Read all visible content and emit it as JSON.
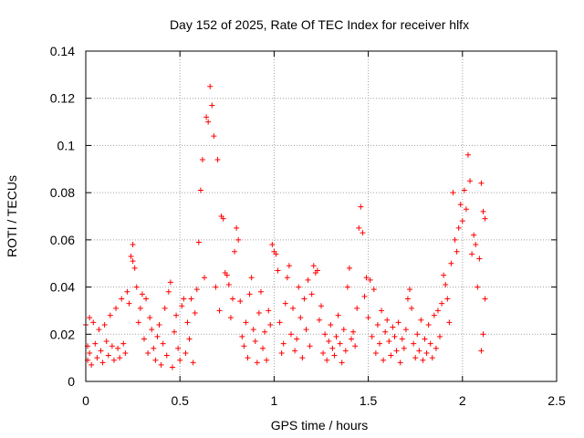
{
  "chart_data": {
    "type": "scatter",
    "title": "Day 152 of 2025, Rate Of TEC Index for receiver hlfx",
    "xlabel": "GPS time / hours",
    "ylabel": "ROTI / TECUs",
    "xlim": [
      0,
      2.5
    ],
    "ylim": [
      0,
      0.14
    ],
    "xticks": [
      0,
      0.5,
      1,
      1.5,
      2,
      2.5
    ],
    "xtick_labels": [
      "0",
      "0.5",
      "1",
      "1.5",
      "2",
      "2.5"
    ],
    "yticks": [
      0,
      0.02,
      0.04,
      0.06,
      0.08,
      0.1,
      0.12,
      0.14
    ],
    "ytick_labels": [
      "0",
      "0.02",
      "0.04",
      "0.06",
      "0.08",
      "0.1",
      "0.12",
      "0.14"
    ],
    "grid": true,
    "marker": "+",
    "color": "#ff0000",
    "series": [
      {
        "name": "ROTI",
        "points": [
          [
            0.0,
            0.024
          ],
          [
            0.01,
            0.015
          ],
          [
            0.01,
            0.009
          ],
          [
            0.02,
            0.027
          ],
          [
            0.02,
            0.012
          ],
          [
            0.03,
            0.007
          ],
          [
            0.04,
            0.025
          ],
          [
            0.05,
            0.016
          ],
          [
            0.06,
            0.01
          ],
          [
            0.07,
            0.022
          ],
          [
            0.08,
            0.013
          ],
          [
            0.09,
            0.008
          ],
          [
            0.1,
            0.024
          ],
          [
            0.11,
            0.017
          ],
          [
            0.12,
            0.011
          ],
          [
            0.13,
            0.028
          ],
          [
            0.14,
            0.015
          ],
          [
            0.15,
            0.009
          ],
          [
            0.16,
            0.031
          ],
          [
            0.17,
            0.014
          ],
          [
            0.18,
            0.01
          ],
          [
            0.19,
            0.035
          ],
          [
            0.2,
            0.016
          ],
          [
            0.21,
            0.012
          ],
          [
            0.22,
            0.038
          ],
          [
            0.23,
            0.033
          ],
          [
            0.24,
            0.053
          ],
          [
            0.25,
            0.058
          ],
          [
            0.25,
            0.051
          ],
          [
            0.26,
            0.048
          ],
          [
            0.27,
            0.04
          ],
          [
            0.28,
            0.025
          ],
          [
            0.29,
            0.031
          ],
          [
            0.3,
            0.037
          ],
          [
            0.31,
            0.018
          ],
          [
            0.32,
            0.035
          ],
          [
            0.33,
            0.012
          ],
          [
            0.34,
            0.027
          ],
          [
            0.35,
            0.022
          ],
          [
            0.36,
            0.014
          ],
          [
            0.37,
            0.009
          ],
          [
            0.38,
            0.019
          ],
          [
            0.39,
            0.024
          ],
          [
            0.4,
            0.007
          ],
          [
            0.41,
            0.016
          ],
          [
            0.42,
            0.031
          ],
          [
            0.43,
            0.011
          ],
          [
            0.44,
            0.038
          ],
          [
            0.45,
            0.042
          ],
          [
            0.46,
            0.006
          ],
          [
            0.47,
            0.021
          ],
          [
            0.48,
            0.028
          ],
          [
            0.49,
            0.014
          ],
          [
            0.5,
            0.009
          ],
          [
            0.51,
            0.032
          ],
          [
            0.52,
            0.035
          ],
          [
            0.53,
            0.012
          ],
          [
            0.54,
            0.025
          ],
          [
            0.55,
            0.018
          ],
          [
            0.56,
            0.035
          ],
          [
            0.57,
            0.008
          ],
          [
            0.58,
            0.029
          ],
          [
            0.59,
            0.039
          ],
          [
            0.6,
            0.059
          ],
          [
            0.61,
            0.081
          ],
          [
            0.62,
            0.094
          ],
          [
            0.63,
            0.044
          ],
          [
            0.64,
            0.112
          ],
          [
            0.65,
            0.11
          ],
          [
            0.66,
            0.125
          ],
          [
            0.67,
            0.117
          ],
          [
            0.68,
            0.104
          ],
          [
            0.69,
            0.04
          ],
          [
            0.7,
            0.094
          ],
          [
            0.71,
            0.03
          ],
          [
            0.72,
            0.07
          ],
          [
            0.73,
            0.069
          ],
          [
            0.74,
            0.046
          ],
          [
            0.75,
            0.045
          ],
          [
            0.76,
            0.041
          ],
          [
            0.77,
            0.027
          ],
          [
            0.78,
            0.035
          ],
          [
            0.79,
            0.055
          ],
          [
            0.8,
            0.065
          ],
          [
            0.81,
            0.06
          ],
          [
            0.82,
            0.034
          ],
          [
            0.83,
            0.019
          ],
          [
            0.84,
            0.015
          ],
          [
            0.85,
            0.025
          ],
          [
            0.86,
            0.01
          ],
          [
            0.87,
            0.037
          ],
          [
            0.88,
            0.044
          ],
          [
            0.89,
            0.022
          ],
          [
            0.9,
            0.017
          ],
          [
            0.91,
            0.008
          ],
          [
            0.92,
            0.029
          ],
          [
            0.93,
            0.038
          ],
          [
            0.94,
            0.014
          ],
          [
            0.95,
            0.021
          ],
          [
            0.96,
            0.009
          ],
          [
            0.97,
            0.03
          ],
          [
            0.98,
            0.024
          ],
          [
            0.99,
            0.058
          ],
          [
            1.0,
            0.055
          ],
          [
            1.01,
            0.054
          ],
          [
            1.02,
            0.047
          ],
          [
            1.03,
            0.025
          ],
          [
            1.04,
            0.012
          ],
          [
            1.05,
            0.016
          ],
          [
            1.06,
            0.033
          ],
          [
            1.07,
            0.044
          ],
          [
            1.08,
            0.049
          ],
          [
            1.09,
            0.02
          ],
          [
            1.1,
            0.031
          ],
          [
            1.11,
            0.013
          ],
          [
            1.12,
            0.018
          ],
          [
            1.13,
            0.04
          ],
          [
            1.14,
            0.027
          ],
          [
            1.15,
            0.01
          ],
          [
            1.16,
            0.035
          ],
          [
            1.17,
            0.022
          ],
          [
            1.18,
            0.043
          ],
          [
            1.19,
            0.015
          ],
          [
            1.2,
            0.037
          ],
          [
            1.21,
            0.049
          ],
          [
            1.22,
            0.046
          ],
          [
            1.23,
            0.047
          ],
          [
            1.24,
            0.026
          ],
          [
            1.25,
            0.032
          ],
          [
            1.26,
            0.012
          ],
          [
            1.27,
            0.02
          ],
          [
            1.28,
            0.009
          ],
          [
            1.29,
            0.017
          ],
          [
            1.3,
            0.024
          ],
          [
            1.31,
            0.014
          ],
          [
            1.32,
            0.011
          ],
          [
            1.33,
            0.019
          ],
          [
            1.34,
            0.028
          ],
          [
            1.35,
            0.016
          ],
          [
            1.36,
            0.008
          ],
          [
            1.37,
            0.022
          ],
          [
            1.38,
            0.013
          ],
          [
            1.39,
            0.04
          ],
          [
            1.4,
            0.048
          ],
          [
            1.41,
            0.018
          ],
          [
            1.42,
            0.021
          ],
          [
            1.43,
            0.015
          ],
          [
            1.44,
            0.031
          ],
          [
            1.45,
            0.065
          ],
          [
            1.46,
            0.074
          ],
          [
            1.47,
            0.063
          ],
          [
            1.48,
            0.036
          ],
          [
            1.49,
            0.044
          ],
          [
            1.5,
            0.027
          ],
          [
            1.51,
            0.043
          ],
          [
            1.52,
            0.019
          ],
          [
            1.53,
            0.039
          ],
          [
            1.54,
            0.012
          ],
          [
            1.55,
            0.024
          ],
          [
            1.56,
            0.016
          ],
          [
            1.57,
            0.03
          ],
          [
            1.58,
            0.009
          ],
          [
            1.59,
            0.021
          ],
          [
            1.6,
            0.026
          ],
          [
            1.61,
            0.017
          ],
          [
            1.62,
            0.011
          ],
          [
            1.63,
            0.023
          ],
          [
            1.64,
            0.019
          ],
          [
            1.65,
            0.013
          ],
          [
            1.66,
            0.025
          ],
          [
            1.67,
            0.008
          ],
          [
            1.68,
            0.018
          ],
          [
            1.69,
            0.014
          ],
          [
            1.7,
            0.022
          ],
          [
            1.71,
            0.035
          ],
          [
            1.72,
            0.039
          ],
          [
            1.73,
            0.031
          ],
          [
            1.74,
            0.016
          ],
          [
            1.75,
            0.01
          ],
          [
            1.76,
            0.02
          ],
          [
            1.77,
            0.013
          ],
          [
            1.78,
            0.026
          ],
          [
            1.79,
            0.009
          ],
          [
            1.8,
            0.018
          ],
          [
            1.81,
            0.012
          ],
          [
            1.82,
            0.024
          ],
          [
            1.83,
            0.016
          ],
          [
            1.84,
            0.01
          ],
          [
            1.85,
            0.028
          ],
          [
            1.86,
            0.014
          ],
          [
            1.87,
            0.03
          ],
          [
            1.88,
            0.019
          ],
          [
            1.89,
            0.033
          ],
          [
            1.9,
            0.045
          ],
          [
            1.91,
            0.041
          ],
          [
            1.92,
            0.035
          ],
          [
            1.93,
            0.025
          ],
          [
            1.94,
            0.05
          ],
          [
            1.95,
            0.08
          ],
          [
            1.96,
            0.06
          ],
          [
            1.97,
            0.055
          ],
          [
            1.98,
            0.065
          ],
          [
            1.99,
            0.075
          ],
          [
            2.0,
            0.068
          ],
          [
            2.01,
            0.081
          ],
          [
            2.02,
            0.073
          ],
          [
            2.03,
            0.096
          ],
          [
            2.04,
            0.085
          ],
          [
            2.05,
            0.054
          ],
          [
            2.06,
            0.062
          ],
          [
            2.07,
            0.058
          ],
          [
            2.08,
            0.04
          ],
          [
            2.09,
            0.052
          ],
          [
            2.1,
            0.084
          ],
          [
            2.11,
            0.072
          ],
          [
            2.12,
            0.069
          ],
          [
            2.12,
            0.035
          ],
          [
            2.11,
            0.02
          ],
          [
            2.1,
            0.013
          ]
        ]
      }
    ]
  }
}
